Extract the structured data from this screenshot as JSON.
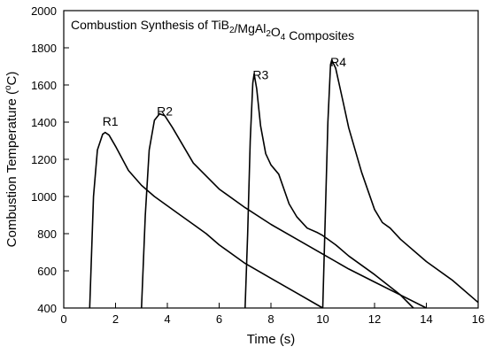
{
  "chart_data": {
    "type": "line",
    "title": {
      "parts": [
        {
          "text": "Combustion Synthesis of TiB",
          "sub": false
        },
        {
          "text": "2",
          "sub": true
        },
        {
          "text": "/MgAl",
          "sub": false
        },
        {
          "text": "2",
          "sub": true
        },
        {
          "text": "O",
          "sub": false
        },
        {
          "text": "4",
          "sub": true
        },
        {
          "text": " Composites",
          "sub": false
        }
      ]
    },
    "xlabel": "Time (s)",
    "ylabel": {
      "prefix": "Combustion Temperature (",
      "sup": "o",
      "suffix": "C)"
    },
    "xlim": [
      0,
      16
    ],
    "ylim": [
      400,
      2000
    ],
    "xticks": [
      0,
      2,
      4,
      6,
      8,
      10,
      12,
      14,
      16
    ],
    "yticks": [
      400,
      600,
      800,
      1000,
      1200,
      1400,
      1600,
      1800,
      2000
    ],
    "grid": false,
    "legend": "none",
    "line_color": "#000000",
    "series": [
      {
        "name": "R1",
        "label_at": [
          1.8,
          1380
        ],
        "points": [
          [
            1.0,
            400
          ],
          [
            1.15,
            1000
          ],
          [
            1.3,
            1250
          ],
          [
            1.5,
            1335
          ],
          [
            1.6,
            1345
          ],
          [
            1.75,
            1330
          ],
          [
            2.0,
            1270
          ],
          [
            2.5,
            1140
          ],
          [
            3.0,
            1060
          ],
          [
            3.5,
            1000
          ],
          [
            4.0,
            950
          ],
          [
            4.5,
            900
          ],
          [
            5.0,
            850
          ],
          [
            5.5,
            800
          ],
          [
            6.0,
            740
          ],
          [
            7.0,
            640
          ],
          [
            8.0,
            560
          ],
          [
            9.0,
            480
          ],
          [
            10.0,
            400
          ]
        ]
      },
      {
        "name": "R2",
        "label_at": [
          3.9,
          1435
        ],
        "points": [
          [
            3.0,
            400
          ],
          [
            3.15,
            900
          ],
          [
            3.3,
            1250
          ],
          [
            3.5,
            1410
          ],
          [
            3.7,
            1445
          ],
          [
            3.9,
            1435
          ],
          [
            4.2,
            1370
          ],
          [
            5.0,
            1180
          ],
          [
            6.0,
            1040
          ],
          [
            7.0,
            940
          ],
          [
            8.0,
            850
          ],
          [
            9.0,
            770
          ],
          [
            10.0,
            690
          ],
          [
            11.0,
            610
          ],
          [
            12.0,
            540
          ],
          [
            13.0,
            470
          ],
          [
            14.0,
            400
          ]
        ]
      },
      {
        "name": "R3",
        "label_at": [
          7.6,
          1630
        ],
        "points": [
          [
            7.0,
            400
          ],
          [
            7.1,
            800
          ],
          [
            7.2,
            1300
          ],
          [
            7.3,
            1610
          ],
          [
            7.35,
            1660
          ],
          [
            7.45,
            1580
          ],
          [
            7.6,
            1380
          ],
          [
            7.8,
            1230
          ],
          [
            8.0,
            1170
          ],
          [
            8.3,
            1120
          ],
          [
            8.7,
            960
          ],
          [
            9.0,
            890
          ],
          [
            9.4,
            830
          ],
          [
            9.8,
            805
          ],
          [
            10.0,
            790
          ],
          [
            10.5,
            740
          ],
          [
            11.0,
            680
          ],
          [
            12.0,
            580
          ],
          [
            13.0,
            470
          ],
          [
            13.5,
            400
          ]
        ]
      },
      {
        "name": "R4",
        "label_at": [
          10.6,
          1700
        ],
        "points": [
          [
            10.0,
            400
          ],
          [
            10.1,
            900
          ],
          [
            10.2,
            1400
          ],
          [
            10.3,
            1710
          ],
          [
            10.35,
            1735
          ],
          [
            10.5,
            1690
          ],
          [
            10.8,
            1500
          ],
          [
            11.0,
            1370
          ],
          [
            11.5,
            1130
          ],
          [
            12.0,
            930
          ],
          [
            12.3,
            860
          ],
          [
            12.6,
            830
          ],
          [
            13.0,
            770
          ],
          [
            14.0,
            650
          ],
          [
            15.0,
            550
          ],
          [
            16.0,
            430
          ]
        ]
      }
    ]
  }
}
